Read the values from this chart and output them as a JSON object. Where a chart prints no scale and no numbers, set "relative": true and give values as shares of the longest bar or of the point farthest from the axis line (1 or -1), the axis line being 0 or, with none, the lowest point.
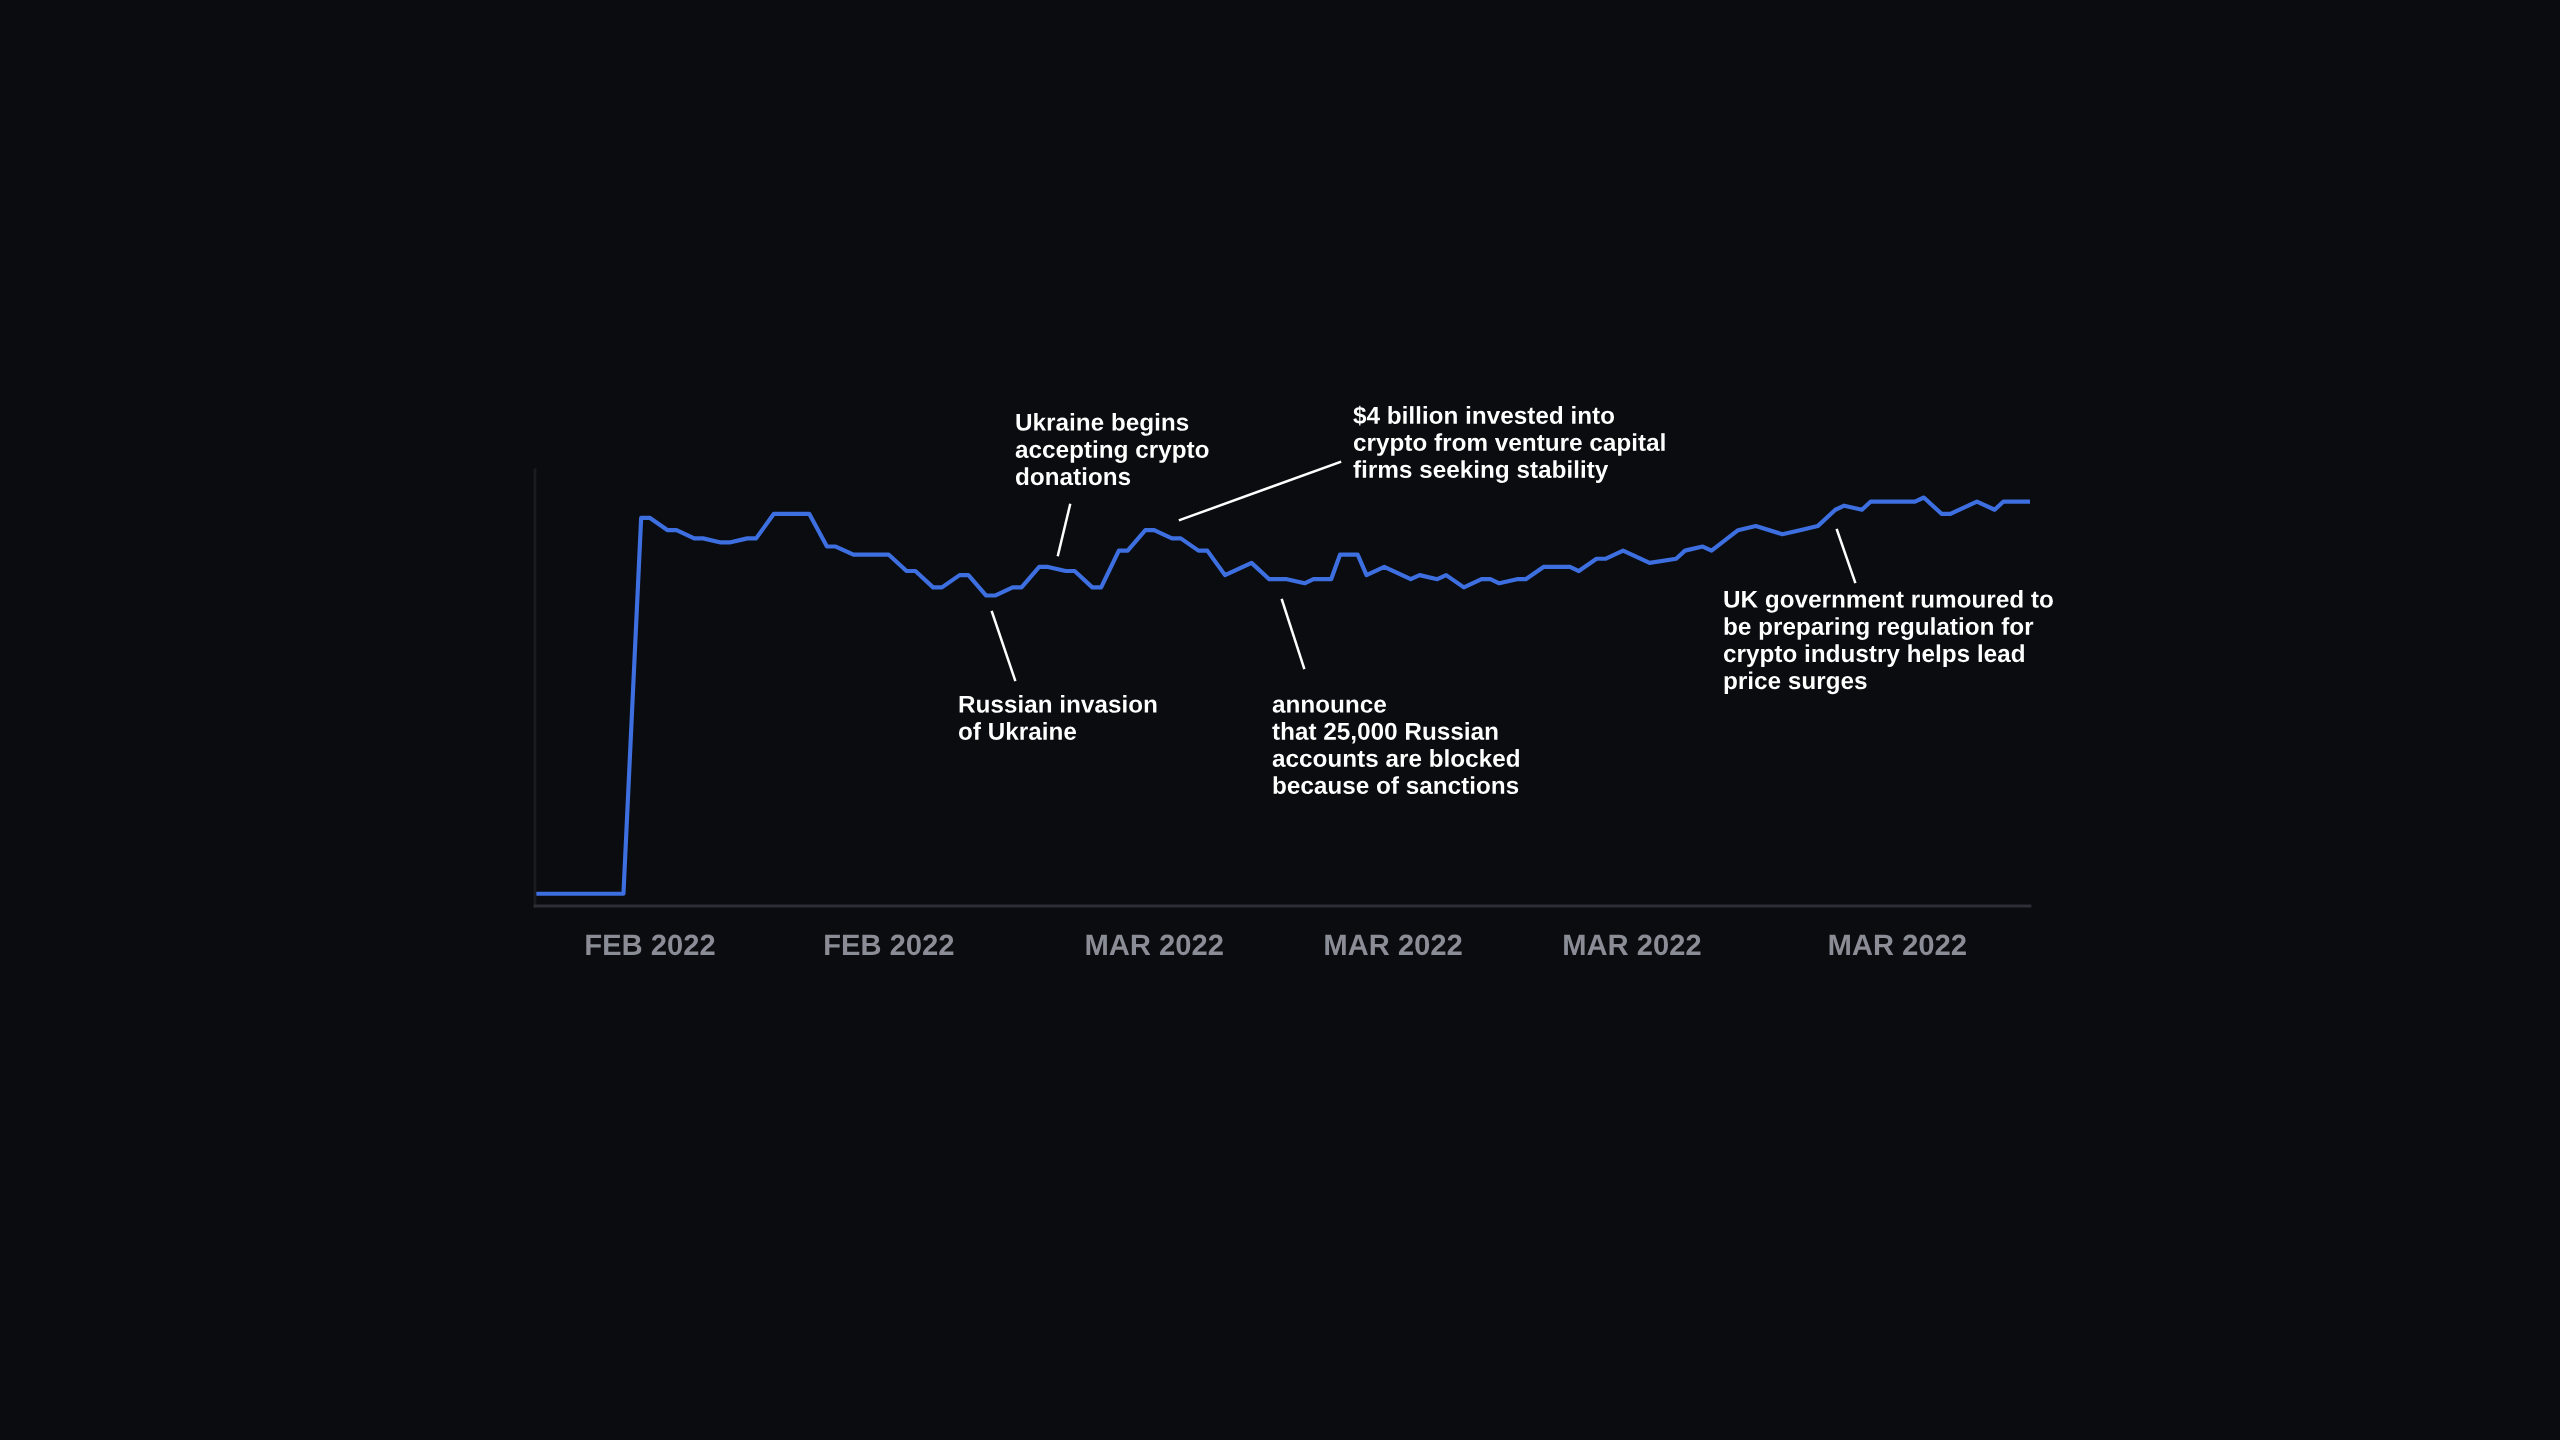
{
  "chart_data": {
    "type": "line",
    "relative": true,
    "x": [
      "2022-02-06T16:00",
      "2022-02-10T00:00",
      "2022-02-10T16:00",
      "2022-02-11T00:00",
      "2022-02-11T16:00",
      "2022-02-12T00:00",
      "2022-02-12T16:00",
      "2022-02-13T00:00",
      "2022-02-13T16:00",
      "2022-02-14T00:00",
      "2022-02-14T16:00",
      "2022-02-15T00:00",
      "2022-02-15T16:00",
      "2022-02-17T00:00",
      "2022-02-17T16:00",
      "2022-02-18T00:00",
      "2022-02-18T16:00",
      "2022-02-20T00:00",
      "2022-02-20T16:00",
      "2022-02-21T00:00",
      "2022-02-21T16:00",
      "2022-02-22T00:00",
      "2022-02-22T16:00",
      "2022-02-23T00:00",
      "2022-02-23T16:00",
      "2022-02-24T00:00",
      "2022-02-24T16:00",
      "2022-02-25T00:00",
      "2022-02-25T16:00",
      "2022-02-26T00:00",
      "2022-02-26T16:00",
      "2022-02-27T00:00",
      "2022-02-27T16:00",
      "2022-02-28T00:00",
      "2022-02-28T16:00",
      "2022-03-01T00:00",
      "2022-03-01T16:00",
      "2022-03-02T00:00",
      "2022-03-02T16:00",
      "2022-03-03T00:00",
      "2022-03-03T16:00",
      "2022-03-04T00:00",
      "2022-03-04T16:00",
      "2022-03-05T16:00",
      "2022-03-06T08:00",
      "2022-03-07T00:00",
      "2022-03-07T16:00",
      "2022-03-08T00:00",
      "2022-03-08T16:00",
      "2022-03-09T00:00",
      "2022-03-09T16:00",
      "2022-03-10T00:00",
      "2022-03-10T16:00",
      "2022-03-11T16:00",
      "2022-03-12T00:00",
      "2022-03-12T16:00",
      "2022-03-13T00:00",
      "2022-03-13T16:00",
      "2022-03-14T08:00",
      "2022-03-14T16:00",
      "2022-03-15T00:00",
      "2022-03-15T16:00",
      "2022-03-16T00:00",
      "2022-03-16T16:00",
      "2022-03-17T00:00",
      "2022-03-17T16:00",
      "2022-03-18T00:00",
      "2022-03-18T16:00",
      "2022-03-19T00:00",
      "2022-03-19T16:00",
      "2022-03-20T16:00",
      "2022-03-21T16:00",
      "2022-03-22T00:00",
      "2022-03-22T16:00",
      "2022-03-23T00:00",
      "2022-03-24T00:00",
      "2022-03-24T16:00",
      "2022-03-25T16:00",
      "2022-03-26T08:00",
      "2022-03-27T00:00",
      "2022-03-27T16:00",
      "2022-03-28T00:00",
      "2022-03-28T16:00",
      "2022-03-29T00:00",
      "2022-03-29T16:00",
      "2022-03-30T00:00",
      "2022-03-30T16:00",
      "2022-03-31T00:00",
      "2022-03-31T16:00",
      "2022-04-01T00:00",
      "2022-04-02T00:00",
      "2022-04-02T16:00",
      "2022-04-03T00:00",
      "2022-04-03T16:00",
      "2022-04-04T00:00"
    ],
    "series": [
      {
        "color": "#3d6fe0",
        "values": [
          0.03,
          0.03,
          0.95,
          0.95,
          0.92,
          0.92,
          0.9,
          0.9,
          0.89,
          0.89,
          0.9,
          0.9,
          0.96,
          0.96,
          0.88,
          0.88,
          0.86,
          0.86,
          0.82,
          0.82,
          0.78,
          0.78,
          0.81,
          0.81,
          0.76,
          0.76,
          0.78,
          0.78,
          0.83,
          0.83,
          0.82,
          0.82,
          0.78,
          0.78,
          0.87,
          0.87,
          0.92,
          0.92,
          0.9,
          0.9,
          0.87,
          0.87,
          0.81,
          0.84,
          0.8,
          0.8,
          0.79,
          0.8,
          0.8,
          0.86,
          0.86,
          0.81,
          0.83,
          0.8,
          0.81,
          0.8,
          0.81,
          0.78,
          0.8,
          0.8,
          0.79,
          0.8,
          0.8,
          0.83,
          0.83,
          0.83,
          0.82,
          0.85,
          0.85,
          0.87,
          0.84,
          0.85,
          0.87,
          0.88,
          0.87,
          0.92,
          0.93,
          0.91,
          0.92,
          0.93,
          0.97,
          0.98,
          0.97,
          0.99,
          0.99,
          0.99,
          0.99,
          1.0,
          0.96,
          0.96,
          0.99,
          0.97,
          0.99,
          0.99,
          0.99
        ]
      }
    ],
    "xlim": [
      "2022-02-06T16:00",
      "2022-04-04T00:00"
    ],
    "xticks": [
      {
        "value": "2022-02-11",
        "label": "FEB 2022"
      },
      {
        "value": "2022-02-20",
        "label": "FEB 2022"
      },
      {
        "value": "2022-03-02",
        "label": "MAR 2022"
      },
      {
        "value": "2022-03-11",
        "label": "MAR 2022"
      },
      {
        "value": "2022-03-20",
        "label": "MAR 2022"
      },
      {
        "value": "2022-03-30",
        "label": "MAR 2022"
      }
    ],
    "annotations": [
      "Russian invasion\nof Ukraine",
      "Ukraine begins\naccepting crypto\ndonations",
      "$4 billion invested into\ncrypto from venture capital\nfirms seeking stability",
      "announce\nthat 25,000 Russian\naccounts are blocked\nbecause of sanctions",
      "UK government rumoured to\nbe preparing regulation for\ncrypto industry helps lead\nprice surges"
    ],
    "grid": false,
    "legend": false,
    "marker": "none",
    "line_style": "solid"
  }
}
